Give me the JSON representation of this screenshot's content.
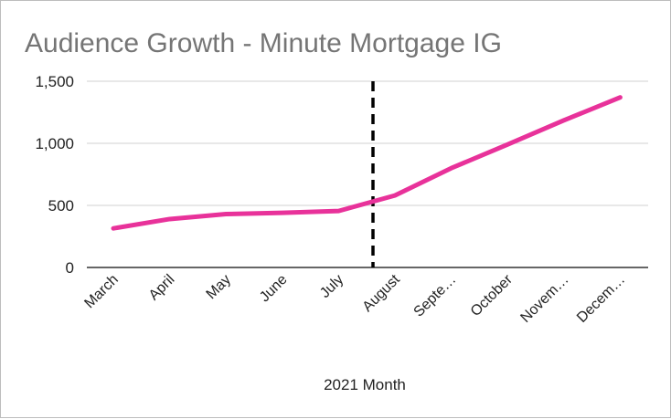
{
  "chart_data": {
    "type": "line",
    "title": "Audience Growth - Minute Mortgage IG",
    "xlabel": "2021 Month",
    "ylabel": "",
    "categories": [
      "March",
      "April",
      "May",
      "June",
      "July",
      "August",
      "Septe…",
      "October",
      "Novem…",
      "Decem…"
    ],
    "series": [
      {
        "values": [
          315,
          390,
          430,
          440,
          455,
          580,
          800,
          990,
          1185,
          1370
        ],
        "color": "#e8329a"
      }
    ],
    "ylim": [
      0,
      1500
    ],
    "yticks": [
      0,
      500,
      1000,
      1500
    ],
    "ytick_labels": [
      "0",
      "500",
      "1,000",
      "1,500"
    ],
    "vertical_marker": {
      "category": "August",
      "style": "dashed",
      "color": "#000000"
    },
    "grid": true,
    "legend": "none"
  }
}
